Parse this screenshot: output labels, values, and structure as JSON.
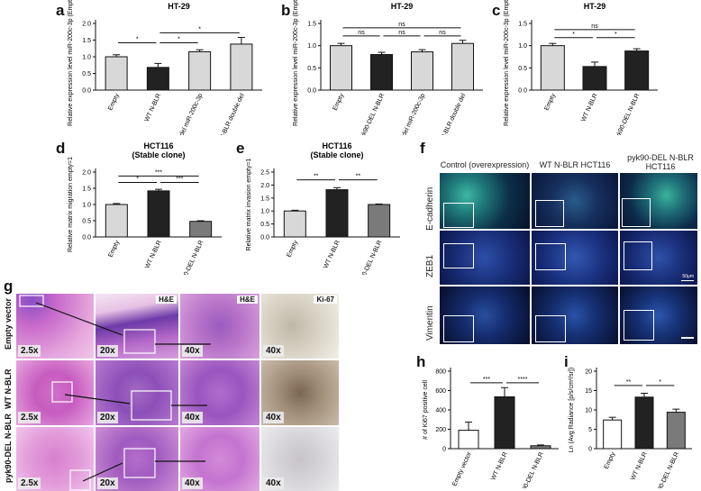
{
  "panels": {
    "a": {
      "letter": "a"
    },
    "b": {
      "letter": "b"
    },
    "c": {
      "letter": "c"
    },
    "d": {
      "letter": "d"
    },
    "e": {
      "letter": "e"
    },
    "f": {
      "letter": "f"
    },
    "g": {
      "letter": "g"
    },
    "h": {
      "letter": "h"
    },
    "i": {
      "letter": "i"
    }
  },
  "colors": {
    "light_gray": "#d8d8d8",
    "dark": "#222222",
    "mid_gray": "#7a7a7a",
    "white": "#ffffff"
  },
  "chart_data": [
    {
      "id": "a",
      "type": "bar",
      "title": "HT-29",
      "ylabel": "Relative expression level miR-200c-3p (Empty=1)",
      "ylim": [
        0,
        2.0
      ],
      "yticks": [
        0.0,
        0.5,
        1.0,
        1.5,
        2.0
      ],
      "categories": [
        "Empty",
        "WT N-BLR",
        "WT N-BLR del miR-200c-3p",
        "WT N-BLR double del"
      ],
      "values": [
        1.0,
        0.68,
        1.15,
        1.38
      ],
      "errors": [
        0.06,
        0.12,
        0.06,
        0.2
      ],
      "fills": [
        "#d8d8d8",
        "#222222",
        "#d8d8d8",
        "#d8d8d8"
      ],
      "brackets": [
        {
          "from": 0,
          "to": 1,
          "level": 1.42,
          "label": "*"
        },
        {
          "from": 1,
          "to": 2,
          "level": 1.42,
          "label": "*"
        },
        {
          "from": 1,
          "to": 3,
          "level": 1.72,
          "label": "*"
        }
      ]
    },
    {
      "id": "b",
      "type": "bar",
      "title": "HT-29",
      "ylabel": "Relative expression level miR-200c-3p (Empty=1)",
      "ylim": [
        0,
        1.5
      ],
      "yticks": [
        0.0,
        0.5,
        1.0,
        1.5
      ],
      "categories": [
        "Empty",
        "pyk90-DEL N-BLR",
        "pyk90-DEL N-BLR del miR-200c-3p",
        "pyk90-DEL N-BLR double del"
      ],
      "values": [
        1.0,
        0.8,
        0.86,
        1.05
      ],
      "errors": [
        0.05,
        0.05,
        0.05,
        0.07
      ],
      "fills": [
        "#d8d8d8",
        "#222222",
        "#d8d8d8",
        "#d8d8d8"
      ],
      "brackets": [
        {
          "from": 0,
          "to": 1,
          "level": 1.22,
          "label": "ns"
        },
        {
          "from": 1,
          "to": 2,
          "level": 1.22,
          "label": "ns"
        },
        {
          "from": 2,
          "to": 3,
          "level": 1.22,
          "label": "ns"
        },
        {
          "from": 0,
          "to": 3,
          "level": 1.4,
          "label": "ns"
        }
      ]
    },
    {
      "id": "c",
      "type": "bar",
      "title": "HT-29",
      "ylabel": "Relative expression level miR-200c-3p (Empty=1)",
      "ylim": [
        0,
        1.5
      ],
      "yticks": [
        0.0,
        0.5,
        1.0,
        1.5
      ],
      "categories": [
        "Empty",
        "WT N-BLR",
        "pyk90-DEL N-BLR"
      ],
      "values": [
        1.0,
        0.53,
        0.88
      ],
      "errors": [
        0.05,
        0.1,
        0.05
      ],
      "fills": [
        "#d8d8d8",
        "#222222",
        "#222222"
      ],
      "brackets": [
        {
          "from": 0,
          "to": 1,
          "level": 1.18,
          "label": "*"
        },
        {
          "from": 1,
          "to": 2,
          "level": 1.18,
          "label": "*"
        },
        {
          "from": 0,
          "to": 2,
          "level": 1.36,
          "label": "ns"
        }
      ]
    },
    {
      "id": "d",
      "type": "bar",
      "title": "HCT116",
      "subtitle": "(Stable clone)",
      "ylabel": "Relative matrix migration empty=1",
      "ylim": [
        0,
        2.0
      ],
      "yticks": [
        0.0,
        0.5,
        1.0,
        1.5,
        2.0
      ],
      "categories": [
        "Empty",
        "WT N-BLR",
        "pyk90-DEL N-BLR"
      ],
      "values": [
        1.0,
        1.42,
        0.48
      ],
      "errors": [
        0.03,
        0.05,
        0.02
      ],
      "fills": [
        "#d8d8d8",
        "#222222",
        "#7a7a7a"
      ],
      "brackets": [
        {
          "from": 0,
          "to": 1,
          "level": 1.68,
          "label": "*"
        },
        {
          "from": 1,
          "to": 2,
          "level": 1.68,
          "label": "***"
        },
        {
          "from": 0,
          "to": 2,
          "level": 1.88,
          "label": "***"
        }
      ]
    },
    {
      "id": "e",
      "type": "bar",
      "title": "HCT116",
      "subtitle": "(Stable clone)",
      "ylabel": "Relative matrix invasion empty=1",
      "ylim": [
        0,
        2.5
      ],
      "yticks": [
        0.0,
        0.5,
        1.0,
        1.5,
        2.0,
        2.5
      ],
      "categories": [
        "Empty",
        "WT N-BLR",
        "pyk90-DEL N-BLR"
      ],
      "values": [
        1.0,
        1.82,
        1.25
      ],
      "errors": [
        0.03,
        0.08,
        0.02
      ],
      "fills": [
        "#d8d8d8",
        "#222222",
        "#7a7a7a"
      ],
      "brackets": [
        {
          "from": 0,
          "to": 1,
          "level": 2.2,
          "label": "**"
        },
        {
          "from": 1,
          "to": 2,
          "level": 2.2,
          "label": "**"
        }
      ]
    },
    {
      "id": "h",
      "type": "bar",
      "title": "",
      "ylabel": "# of Ki67 positive cell",
      "ylim": [
        0,
        800
      ],
      "yticks": [
        0,
        200,
        400,
        600,
        800
      ],
      "categories": [
        "Empty vector",
        "WT N-BLR",
        "pyk90-DEL N-BLR"
      ],
      "values": [
        190,
        535,
        30
      ],
      "errors": [
        85,
        95,
        8
      ],
      "fills": [
        "#ffffff",
        "#222222",
        "#7a7a7a"
      ],
      "brackets": [
        {
          "from": 0,
          "to": 1,
          "level": 680,
          "label": "***"
        },
        {
          "from": 1,
          "to": 2,
          "level": 680,
          "label": "****"
        }
      ]
    },
    {
      "id": "i",
      "type": "bar",
      "title": "",
      "ylabel": "Ln (Avg Radiance [p/s/cm²/sr])",
      "ylim": [
        0,
        20
      ],
      "yticks": [
        0,
        5,
        10,
        15,
        20
      ],
      "categories": [
        "Empty",
        "WT N-BLR",
        "pyk90-DEL N-BLR"
      ],
      "values": [
        7.4,
        13.3,
        9.4
      ],
      "errors": [
        0.7,
        1.0,
        0.8
      ],
      "fills": [
        "#ffffff",
        "#222222",
        "#7a7a7a"
      ],
      "brackets": [
        {
          "from": 0,
          "to": 1,
          "level": 16.3,
          "label": "**"
        },
        {
          "from": 1,
          "to": 2,
          "level": 16.3,
          "label": "*"
        }
      ]
    }
  ],
  "histology": {
    "row_labels": [
      "Empty vector",
      "WT N-BLR",
      "pyk90-DEL N-BLR"
    ],
    "stain_labels": [
      "H&E",
      "H&E",
      "Ki-67"
    ],
    "magnifications": [
      "2.5x",
      "20x",
      "40x",
      "40x"
    ]
  },
  "fluorescence": {
    "column_labels": [
      "Control (overexpression)",
      "WT N-BLR HCT116",
      "pyk90-DEL N-BLR HCT116"
    ],
    "row_labels": [
      "E-cadherin",
      "ZEB1",
      "Vimentin"
    ],
    "scale_label": "50μm"
  }
}
